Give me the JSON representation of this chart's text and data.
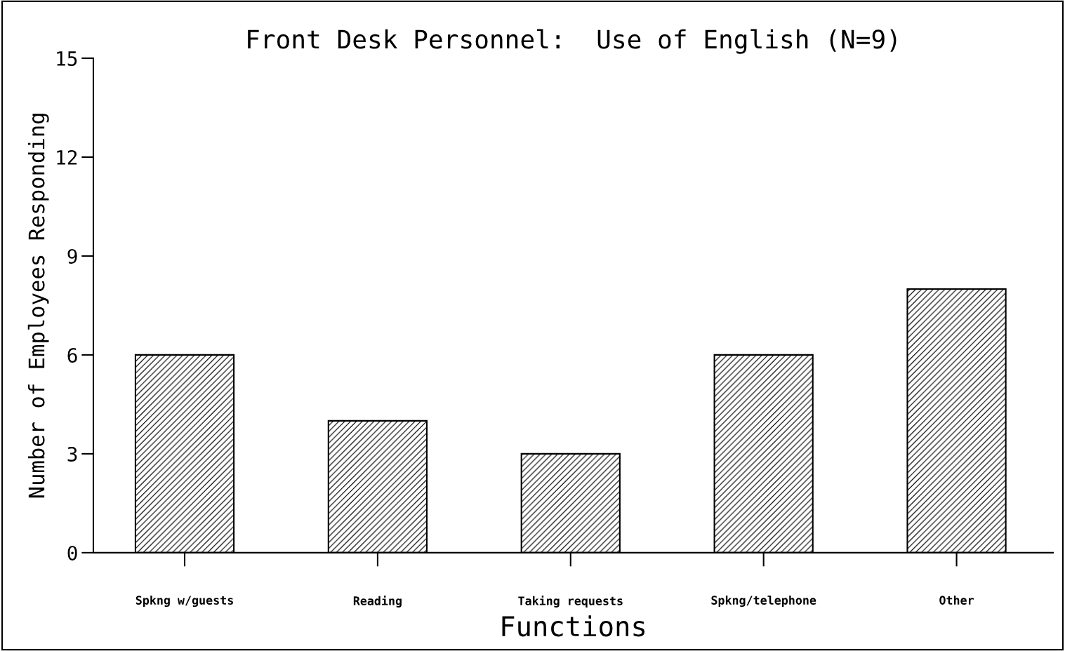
{
  "chart_data": {
    "type": "bar",
    "title": "Front Desk Personnel:  Use of English (N=9)",
    "xlabel": "Functions",
    "ylabel": "Number of Employees Responding",
    "categories": [
      "Spkng w/guests",
      "Reading",
      "Taking requests",
      "Spkng/telephone",
      "Other"
    ],
    "values": [
      6,
      4,
      3,
      6,
      8
    ],
    "color": "#000000",
    "ylim": [
      0,
      15
    ],
    "yticks": [
      0,
      3,
      6,
      9,
      12,
      15
    ],
    "grid": false,
    "legend": false
  }
}
